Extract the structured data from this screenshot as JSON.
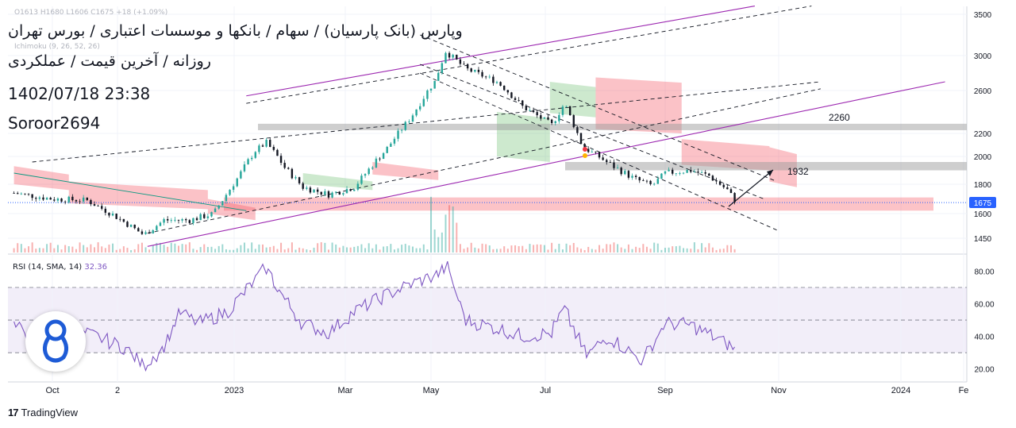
{
  "header": {
    "title_line1": "وپارس (بانک پارسیان) / سهام / بانکها و موسسات اعتباری / بورس تهران",
    "title_line2": "روزانه / آخرین قیمت / عملکردی",
    "datetime": "1402/07/18 23:38",
    "author": "Soroor2694",
    "ohlc_text": "O1613 H1680 L1606 C1675 +18 (+1.09%)",
    "ichimoku_label": "Ichimoku (9, 26, 52, 26)"
  },
  "rsi_panel": {
    "label": "RSI (14, SMA, 14)",
    "value": "32.36"
  },
  "branding": {
    "tv_logo": "17",
    "tv_text": "TradingView"
  },
  "colors": {
    "candle_up": "#26a69a",
    "candle_down": "#131722",
    "cloud_bear": "#f23645",
    "cloud_bull": "#4caf50",
    "rsi_line": "#7e57c2",
    "channel_purple": "#9c27b0",
    "last_price_badge": "#2962ff",
    "zone_red": "#f7525f",
    "zone_gray": "#9e9e9e"
  },
  "chart_data": {
    "type": "candlestick",
    "price_axis_ticks": [
      3500,
      3000,
      2600,
      2200,
      2000,
      1800,
      1600,
      1450
    ],
    "price_axis_labels": [
      "3500",
      "3000",
      "2600",
      "2200",
      "2000",
      "1800",
      "1600",
      "1450"
    ],
    "last_price": 1675,
    "last_price_label": "1675",
    "time_axis_labels": [
      "Oct",
      "2",
      "2023",
      "Mar",
      "May",
      "Jul",
      "Sep",
      "Nov",
      "2024",
      "Fe"
    ],
    "time_axis_dates": [
      "2022-10-01",
      "2022-12-01",
      "2023-01-01",
      "2023-03-01",
      "2023-05-01",
      "2023-07-01",
      "2023-09-01",
      "2023-11-01",
      "2024-01-01",
      "2024-02-01"
    ],
    "ylim": [
      1380,
      3600
    ],
    "price_path": [
      [
        "2022-09-10",
        1740
      ],
      [
        "2022-10-01",
        1700
      ],
      [
        "2022-10-20",
        1690
      ],
      [
        "2022-11-05",
        1580
      ],
      [
        "2022-11-20",
        1470
      ],
      [
        "2022-12-01",
        1560
      ],
      [
        "2022-12-15",
        1560
      ],
      [
        "2022-12-28",
        1600
      ],
      [
        "2023-01-10",
        1840
      ],
      [
        "2023-01-20",
        2050
      ],
      [
        "2023-01-26",
        2120
      ],
      [
        "2023-02-05",
        1920
      ],
      [
        "2023-02-15",
        1780
      ],
      [
        "2023-03-01",
        1730
      ],
      [
        "2023-03-15",
        1780
      ],
      [
        "2023-04-01",
        2050
      ],
      [
        "2023-04-15",
        2350
      ],
      [
        "2023-04-28",
        2700
      ],
      [
        "2023-05-04",
        3050
      ],
      [
        "2023-05-15",
        2850
      ],
      [
        "2023-06-01",
        2700
      ],
      [
        "2023-06-15",
        2450
      ],
      [
        "2023-07-01",
        2280
      ],
      [
        "2023-07-08",
        2480
      ],
      [
        "2023-07-18",
        2080
      ],
      [
        "2023-08-01",
        1950
      ],
      [
        "2023-08-15",
        1840
      ],
      [
        "2023-08-25",
        1790
      ],
      [
        "2023-09-01",
        1880
      ],
      [
        "2023-09-15",
        1900
      ],
      [
        "2023-09-25",
        1860
      ],
      [
        "2023-10-05",
        1760
      ],
      [
        "2023-10-10",
        1675
      ]
    ],
    "rsi_axis_labels": [
      "80.00",
      "60.00",
      "40.00",
      "20.00"
    ],
    "rsi_levels": [
      70,
      50,
      30
    ],
    "rsi_ylim": [
      15,
      88
    ],
    "rsi_series": [
      [
        "2022-09-10",
        47
      ],
      [
        "2022-09-25",
        35
      ],
      [
        "2022-10-10",
        44
      ],
      [
        "2022-10-25",
        40
      ],
      [
        "2022-11-10",
        33
      ],
      [
        "2022-11-20",
        22
      ],
      [
        "2022-12-01",
        33
      ],
      [
        "2022-12-10",
        55
      ],
      [
        "2022-12-20",
        48
      ],
      [
        "2023-01-05",
        55
      ],
      [
        "2023-01-15",
        68
      ],
      [
        "2023-01-26",
        82
      ],
      [
        "2023-02-05",
        63
      ],
      [
        "2023-02-15",
        48
      ],
      [
        "2023-03-01",
        42
      ],
      [
        "2023-03-15",
        55
      ],
      [
        "2023-04-01",
        65
      ],
      [
        "2023-04-15",
        72
      ],
      [
        "2023-04-30",
        78
      ],
      [
        "2023-05-05",
        83
      ],
      [
        "2023-05-15",
        50
      ],
      [
        "2023-06-01",
        45
      ],
      [
        "2023-06-15",
        40
      ],
      [
        "2023-07-01",
        42
      ],
      [
        "2023-07-08",
        57
      ],
      [
        "2023-07-20",
        28
      ],
      [
        "2023-08-01",
        40
      ],
      [
        "2023-08-20",
        25
      ],
      [
        "2023-09-01",
        48
      ],
      [
        "2023-09-15",
        47
      ],
      [
        "2023-10-01",
        38
      ],
      [
        "2023-10-10",
        32
      ]
    ],
    "annotations": [
      {
        "text": "2260",
        "price": 2260
      },
      {
        "text": "1932",
        "price": 1932
      }
    ],
    "zones": [
      {
        "kind": "resistance",
        "from_price": 2230,
        "to_price": 2290
      },
      {
        "kind": "resistance",
        "from_price": 1900,
        "to_price": 1960
      },
      {
        "kind": "support",
        "from_price": 1620,
        "to_price": 1710
      }
    ],
    "grid": true,
    "legend": "none"
  }
}
